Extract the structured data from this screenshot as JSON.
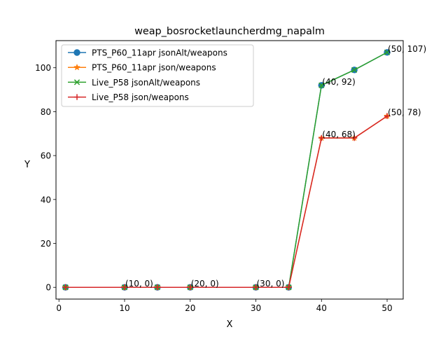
{
  "chart_data": {
    "type": "line",
    "title": "weap_bosrocketlauncherdmg_napalm",
    "xlabel": "X",
    "ylabel": "Y",
    "xlim": [
      -0.45,
      52.45
    ],
    "ylim": [
      -5.35,
      112.35
    ],
    "x_ticks": [
      0,
      10,
      20,
      30,
      40,
      50
    ],
    "y_ticks": [
      0,
      20,
      40,
      60,
      80,
      100
    ],
    "grid": false,
    "legend_position": "top-left",
    "x": [
      1,
      10,
      15,
      20,
      30,
      35,
      40,
      45,
      50
    ],
    "series": [
      {
        "name": "PTS_P60_11apr jsonAlt/weapons",
        "color": "#1f77b4",
        "marker": "circle",
        "values": [
          0,
          0,
          0,
          0,
          0,
          0,
          92,
          99,
          107
        ]
      },
      {
        "name": "PTS_P60_11apr json/weapons",
        "color": "#ff7f0e",
        "marker": "star",
        "values": [
          0,
          0,
          0,
          0,
          0,
          0,
          68,
          68,
          78
        ]
      },
      {
        "name": "Live_P58 jsonAlt/weapons",
        "color": "#2ca02c",
        "marker": "x",
        "values": [
          0,
          0,
          0,
          0,
          0,
          0,
          92,
          99,
          107
        ]
      },
      {
        "name": "Live_P58 json/weapons",
        "color": "#d62728",
        "marker": "plus",
        "values": [
          0,
          0,
          0,
          0,
          0,
          0,
          68,
          68,
          78
        ]
      }
    ],
    "annotations": [
      {
        "x": 10,
        "y": 0,
        "text": "(10, 0)"
      },
      {
        "x": 20,
        "y": 0,
        "text": "(20, 0)"
      },
      {
        "x": 30,
        "y": 0,
        "text": "(30, 0)"
      },
      {
        "x": 40,
        "y": 92,
        "text": "(40, 92)"
      },
      {
        "x": 50,
        "y": 107,
        "text": "(50, 107)"
      },
      {
        "x": 40,
        "y": 68,
        "text": "(40, 68)"
      },
      {
        "x": 50,
        "y": 78,
        "text": "(50, 78)"
      }
    ]
  }
}
